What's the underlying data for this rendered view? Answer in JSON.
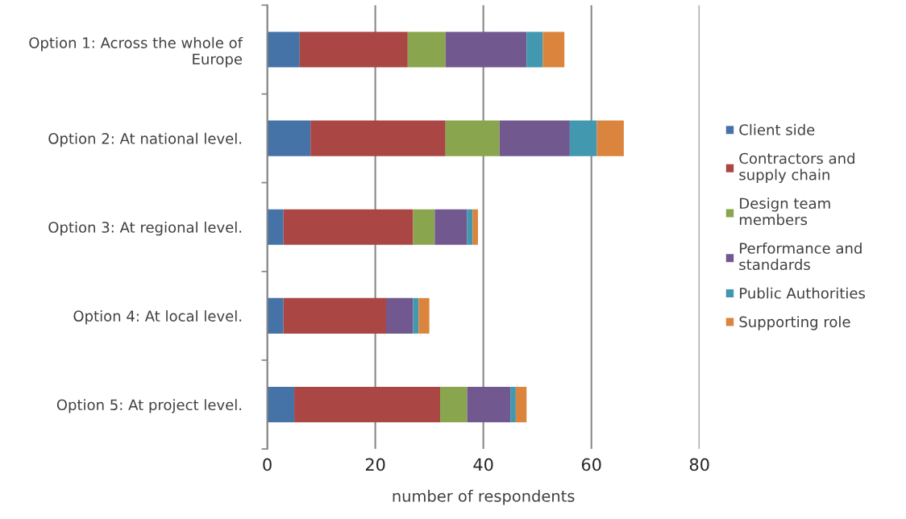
{
  "chart_data": {
    "type": "bar",
    "orientation": "horizontal",
    "stacked": true,
    "xlabel": "number of respondents",
    "categories": [
      "Option 1: Across the whole of\nEurope",
      "Option 2: At national level.",
      "Option 3: At regional level.",
      "Option 4: At local level.",
      "Option 5: At project level."
    ],
    "series": [
      {
        "name": "Client side",
        "color": "#4572a7",
        "values": [
          6,
          8,
          3,
          3,
          5
        ]
      },
      {
        "name": "Contractors and\nsupply chain",
        "color": "#aa4643",
        "values": [
          20,
          25,
          24,
          19,
          27
        ]
      },
      {
        "name": "Design team\nmembers",
        "color": "#89a54e",
        "values": [
          7,
          10,
          4,
          0,
          5
        ]
      },
      {
        "name": "Performance and\nstandards",
        "color": "#71588f",
        "values": [
          15,
          13,
          6,
          5,
          8
        ]
      },
      {
        "name": "Public Authorities",
        "color": "#4198af",
        "values": [
          3,
          5,
          1,
          1,
          1
        ]
      },
      {
        "name": "Supporting role",
        "color": "#db843d",
        "values": [
          4,
          5,
          1,
          2,
          2
        ]
      }
    ],
    "xlim": [
      0,
      80
    ],
    "xticks": [
      0,
      20,
      40,
      60,
      80
    ],
    "grid": "x",
    "legend": "right"
  }
}
